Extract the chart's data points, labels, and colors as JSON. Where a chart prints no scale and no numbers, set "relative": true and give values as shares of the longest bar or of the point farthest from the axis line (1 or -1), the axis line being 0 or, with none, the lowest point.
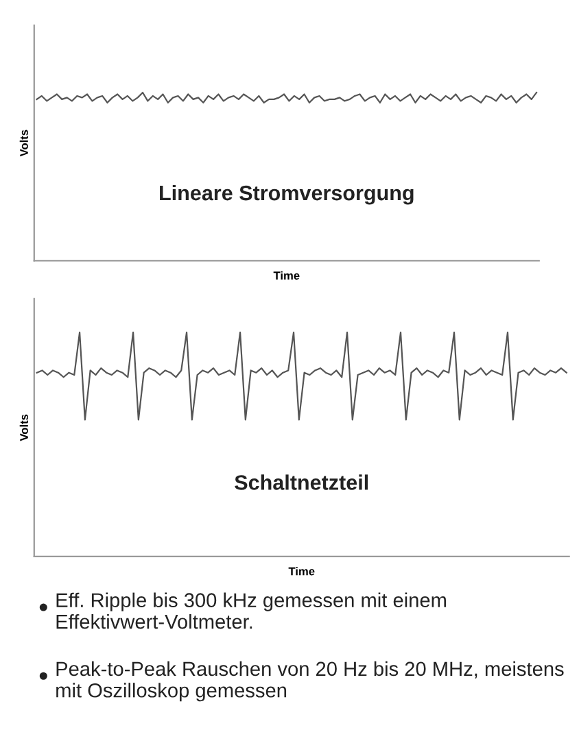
{
  "chart_data": [
    {
      "type": "line",
      "relative": true,
      "title": "Lineare Stromversorgung",
      "xlabel": "Time",
      "ylabel": "Volts",
      "categories": [
        null,
        null,
        null,
        null,
        null,
        null,
        null,
        null,
        null,
        null,
        null,
        null,
        null,
        null,
        null,
        null,
        null,
        null,
        null,
        null,
        null,
        null,
        null,
        null,
        null,
        null,
        null,
        null,
        null,
        null,
        null,
        null,
        null,
        null,
        null,
        null,
        null,
        null,
        null,
        null,
        null,
        null,
        null,
        null,
        null,
        null,
        null,
        null,
        null,
        null,
        null,
        null,
        null,
        null,
        null,
        null,
        null,
        null,
        null,
        null,
        null,
        null,
        null,
        null,
        null,
        null,
        null,
        null,
        null,
        null,
        null,
        null,
        null,
        null,
        null,
        null,
        null,
        null,
        null,
        null,
        null,
        null,
        null,
        null,
        null,
        null,
        null,
        null,
        null,
        null,
        null,
        null,
        null,
        null,
        null,
        null,
        null,
        null,
        null,
        null
      ],
      "series": [
        {
          "color": "#555555",
          "values": [
            0.96,
            0.98,
            0.95,
            0.97,
            0.99,
            0.96,
            0.97,
            0.95,
            0.98,
            0.97,
            0.99,
            0.95,
            0.97,
            0.98,
            0.94,
            0.97,
            0.99,
            0.96,
            0.98,
            0.95,
            0.97,
            1.0,
            0.95,
            0.98,
            0.96,
            0.99,
            0.94,
            0.97,
            0.98,
            0.95,
            0.99,
            0.96,
            0.97,
            0.94,
            0.98,
            0.96,
            0.99,
            0.95,
            0.97,
            0.98,
            0.96,
            0.99,
            0.97,
            0.95,
            0.98,
            0.94,
            0.96,
            0.96,
            0.97,
            0.99,
            0.95,
            0.98,
            0.96,
            0.99,
            0.94,
            0.97,
            0.98,
            0.95,
            0.96,
            0.96,
            0.97,
            0.95,
            0.96,
            0.98,
            0.99,
            0.95,
            0.97,
            0.98,
            0.94,
            0.99,
            0.96,
            0.98,
            0.95,
            0.97,
            0.99,
            0.94,
            0.98,
            0.96,
            0.99,
            0.97,
            0.95,
            0.98,
            0.96,
            0.99,
            0.95,
            0.97,
            0.98,
            0.96,
            0.94,
            0.98,
            0.97,
            0.95,
            0.99,
            0.96,
            0.98,
            0.94,
            0.97,
            0.99,
            0.96,
            1.0
          ]
        }
      ]
    },
    {
      "type": "line",
      "relative": true,
      "title": "Schaltnetzteil",
      "xlabel": "Time",
      "ylabel": "Volts",
      "categories": [
        null,
        null,
        null,
        null,
        null,
        null,
        null,
        null,
        null,
        null,
        null,
        null,
        null,
        null,
        null,
        null,
        null,
        null,
        null,
        null,
        null,
        null,
        null,
        null,
        null,
        null,
        null,
        null,
        null,
        null,
        null,
        null,
        null,
        null,
        null,
        null,
        null,
        null,
        null,
        null,
        null,
        null,
        null,
        null,
        null,
        null,
        null,
        null,
        null,
        null,
        null,
        null,
        null,
        null,
        null,
        null,
        null,
        null,
        null,
        null,
        null,
        null,
        null,
        null,
        null,
        null,
        null,
        null,
        null,
        null,
        null,
        null,
        null,
        null,
        null,
        null,
        null,
        null,
        null,
        null,
        null,
        null,
        null,
        null,
        null,
        null,
        null,
        null,
        null,
        null,
        null,
        null,
        null,
        null,
        null,
        null,
        null,
        null,
        null,
        null
      ],
      "series": [
        {
          "color": "#555555",
          "values": [
            0.82,
            0.83,
            0.81,
            0.83,
            0.82,
            0.8,
            0.82,
            0.81,
            1.0,
            0.61,
            0.83,
            0.81,
            0.84,
            0.82,
            0.81,
            0.83,
            0.82,
            0.8,
            1.0,
            0.61,
            0.82,
            0.84,
            0.83,
            0.81,
            0.83,
            0.82,
            0.8,
            0.83,
            1.0,
            0.61,
            0.81,
            0.83,
            0.82,
            0.84,
            0.81,
            0.82,
            0.83,
            0.81,
            1.0,
            0.61,
            0.83,
            0.82,
            0.84,
            0.81,
            0.83,
            0.8,
            0.82,
            0.83,
            1.0,
            0.61,
            0.82,
            0.81,
            0.83,
            0.84,
            0.82,
            0.81,
            0.83,
            0.8,
            1.0,
            0.61,
            0.81,
            0.82,
            0.83,
            0.81,
            0.84,
            0.82,
            0.83,
            0.81,
            1.0,
            0.61,
            0.82,
            0.84,
            0.81,
            0.83,
            0.82,
            0.8,
            0.83,
            0.82,
            1.0,
            0.61,
            0.83,
            0.81,
            0.82,
            0.84,
            0.81,
            0.83,
            0.82,
            0.81,
            1.0,
            0.61,
            0.82,
            0.83,
            0.81,
            0.84,
            0.82,
            0.81,
            0.83,
            0.82,
            0.84,
            0.82
          ]
        }
      ]
    },
    {
      "type": "other",
      "annotations": [
        "Eff. Ripple bis 300 kHz gemessen mit einem Effektivwert-Voltmeter.",
        "Peak-to-Peak Rauschen von 20 Hz bis 20 MHz, meistens mit Oszilloskop gemessen"
      ]
    }
  ]
}
